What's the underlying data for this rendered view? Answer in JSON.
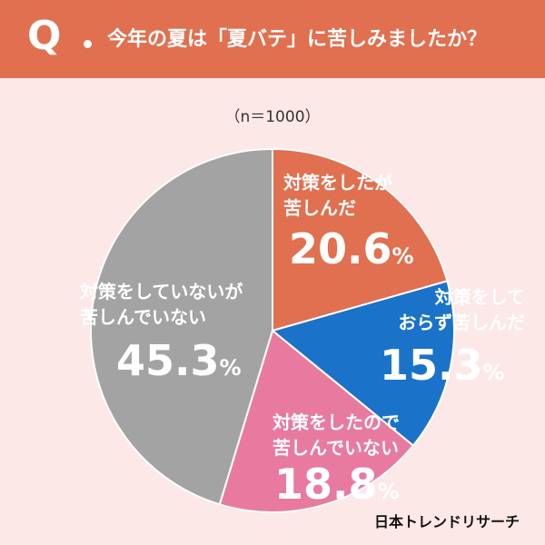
{
  "header": {
    "q_label": "Q",
    "question": "今年の夏は「夏バテ」に苦しみましたか？"
  },
  "sample_size": "（n＝1000）",
  "chart_data": {
    "type": "pie",
    "title": "今年の夏は「夏バテ」に苦しみましたか？",
    "sample": "n=1000",
    "start_angle_deg": 0,
    "direction": "clockwise",
    "slices": [
      {
        "label_lines": [
          "対策をしたが",
          "苦しんだ"
        ],
        "value": 20.6,
        "color": "#e07050"
      },
      {
        "label_lines": [
          "対策をして",
          "おらず苦しんだ"
        ],
        "value": 15.3,
        "color": "#1a73c8"
      },
      {
        "label_lines": [
          "対策をしたので",
          "苦しんでいない"
        ],
        "value": 18.8,
        "color": "#e87aa0"
      },
      {
        "label_lines": [
          "対策をしていないが",
          "苦しんでいない"
        ],
        "value": 45.3,
        "color": "#a3a3a3"
      }
    ],
    "unit": "%"
  },
  "brand": "日本トレンドリサーチ"
}
